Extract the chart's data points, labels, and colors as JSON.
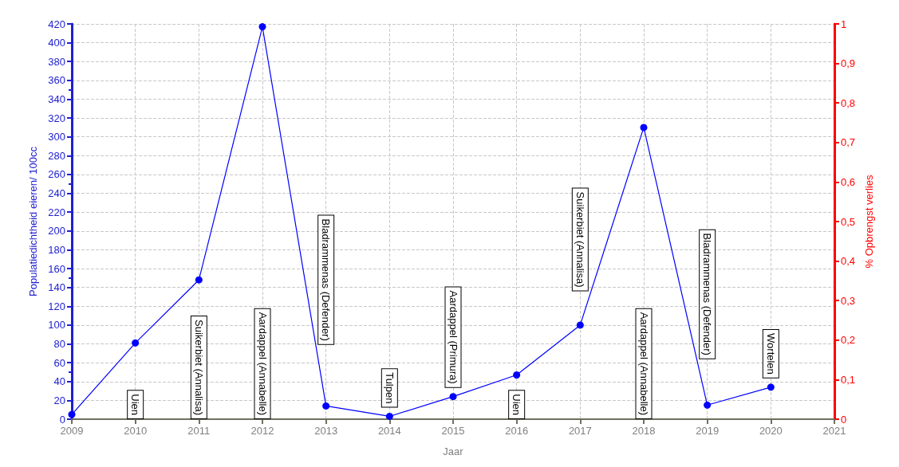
{
  "chart_data": {
    "type": "line",
    "xlabel": "Jaar",
    "ylabel": "Populatiedichtheid eieren/ 100cc",
    "y2label": "% Opbrengst verlies",
    "x": [
      2009,
      2010,
      2011,
      2012,
      2013,
      2014,
      2015,
      2016,
      2017,
      2018,
      2019,
      2020
    ],
    "series": [
      {
        "color": "#0000ff",
        "values": [
          5,
          81,
          148,
          417,
          14,
          3,
          24,
          47,
          100,
          310,
          15,
          34
        ]
      }
    ],
    "xlim": [
      2009,
      2021
    ],
    "xticks": [
      2009,
      2010,
      2011,
      2012,
      2013,
      2014,
      2015,
      2016,
      2017,
      2018,
      2019,
      2020,
      2021
    ],
    "ylim": [
      0,
      420
    ],
    "yticks": [
      0,
      20,
      40,
      60,
      80,
      100,
      120,
      140,
      160,
      180,
      200,
      220,
      240,
      260,
      280,
      300,
      320,
      340,
      360,
      380,
      400,
      420
    ],
    "y2lim": [
      0,
      1
    ],
    "y2ticks": [
      0,
      {
        "value": 0.1,
        "label": "0,1"
      },
      {
        "value": 0.2,
        "label": "0,2"
      },
      {
        "value": 0.3,
        "label": "0,3"
      },
      {
        "value": 0.4,
        "label": "0,4"
      },
      {
        "value": 0.5,
        "label": "0,5"
      },
      {
        "value": 0.6,
        "label": "0,6"
      },
      {
        "value": 0.7,
        "label": "0,7"
      },
      {
        "value": 0.8,
        "label": "0,8"
      },
      {
        "value": 0.9,
        "label": "0,9"
      },
      1
    ],
    "annotations": [
      "Uien",
      "Suikerbiet (Annalisa)",
      "Aardappel (Annabelle)",
      "Bladrammenas (Defender)",
      "Tulpen",
      "Aardappel (Primura)",
      "Uien",
      "Suikerbiet (Annalisa)",
      "Aardappel (Annabelle)",
      "Bladrammenas (Defender)",
      "Wortelen"
    ],
    "grid": true,
    "marker": "circle",
    "line_style": "solid"
  }
}
